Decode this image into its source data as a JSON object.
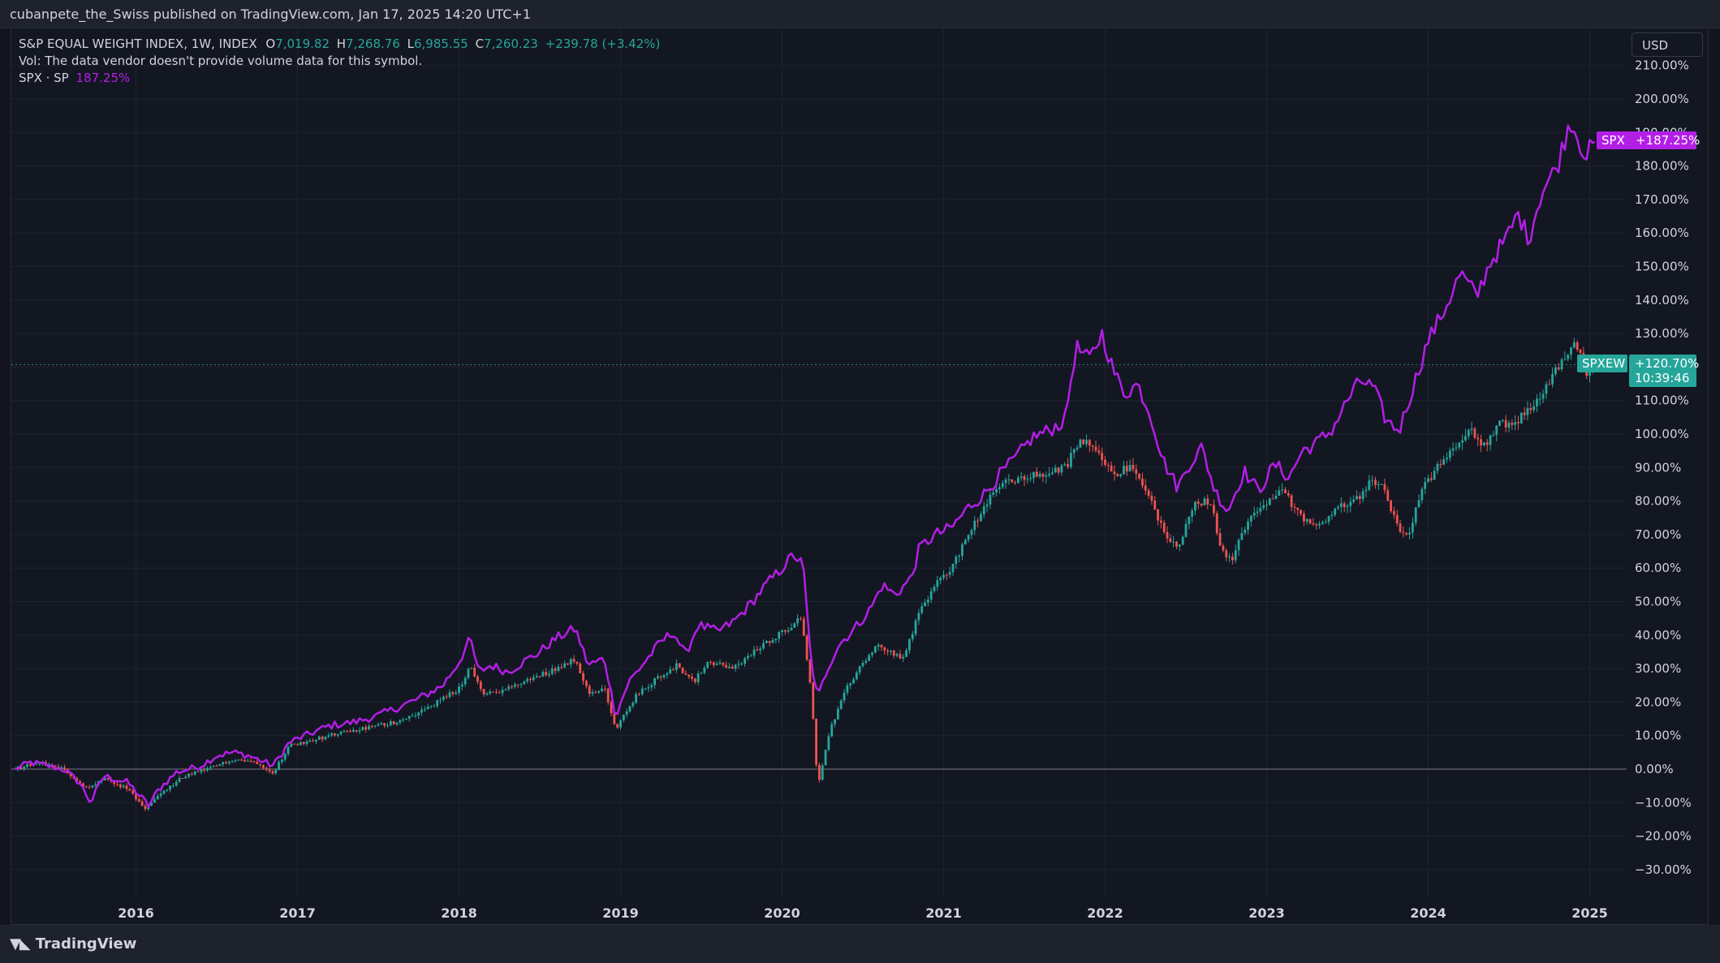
{
  "header": {
    "published": "cubanpete_the_Swiss published on TradingView.com, Jan 17, 2025 14:20 UTC+1"
  },
  "legend": {
    "symbol": "S&P EQUAL WEIGHT INDEX, 1W, INDEX",
    "open_label": "O",
    "open": "7,019.82",
    "high_label": "H",
    "high": "7,268.76",
    "low_label": "L",
    "low": "6,985.55",
    "close_label": "C",
    "close": "7,260.23",
    "change": "+239.78 (+3.42%)",
    "volume_note": "Vol: The data vendor doesn't provide volume data for this symbol.",
    "compare_label": "SPX · SP",
    "compare_value": "187.25%"
  },
  "currency": "USD",
  "footer": {
    "brand": "TradingView"
  },
  "colors": {
    "up": "#26a69a",
    "down": "#ef5350",
    "compare": "#b31ee6",
    "background": "#131722",
    "grid": "#1f2330",
    "zero_line": "#787b86"
  },
  "tags": {
    "spx_symbol": "SPX",
    "spx_value": "+187.25%",
    "spxew_symbol": "SPXEW",
    "spxew_value": "+120.70%",
    "spxew_timer": "10:39:46"
  },
  "chart_data": {
    "type": "candlestick+line",
    "y_unit": "percent",
    "ylim": [
      -36,
      212
    ],
    "xlim": [
      2015.25,
      2025.25
    ],
    "yticks": [
      "210.00%",
      "200.00%",
      "190.00%",
      "180.00%",
      "170.00%",
      "160.00%",
      "150.00%",
      "140.00%",
      "130.00%",
      "120.00%",
      "110.00%",
      "100.00%",
      "90.00%",
      "80.00%",
      "70.00%",
      "60.00%",
      "50.00%",
      "40.00%",
      "30.00%",
      "20.00%",
      "10.00%",
      "0.00%",
      "−10.00%",
      "−20.00%",
      "−30.00%"
    ],
    "xticks": [
      "2016",
      "2017",
      "2018",
      "2019",
      "2020",
      "2021",
      "2022",
      "2023",
      "2024",
      "2025"
    ],
    "grid": true,
    "last_value_line": 120.7,
    "series": [
      {
        "name": "SPX",
        "type": "line",
        "points": [
          [
            2015.25,
            0
          ],
          [
            2015.35,
            2
          ],
          [
            2015.45,
            1
          ],
          [
            2015.55,
            0
          ],
          [
            2015.65,
            -4
          ],
          [
            2015.72,
            -10
          ],
          [
            2015.8,
            -2
          ],
          [
            2015.87,
            -3
          ],
          [
            2015.95,
            -4
          ],
          [
            2016.08,
            -11
          ],
          [
            2016.14,
            -6
          ],
          [
            2016.25,
            -1
          ],
          [
            2016.4,
            1
          ],
          [
            2016.5,
            4
          ],
          [
            2016.6,
            5
          ],
          [
            2016.7,
            4
          ],
          [
            2016.85,
            1
          ],
          [
            2016.95,
            8
          ],
          [
            2017.1,
            11
          ],
          [
            2017.2,
            13
          ],
          [
            2017.35,
            14
          ],
          [
            2017.5,
            16
          ],
          [
            2017.6,
            18
          ],
          [
            2017.75,
            21
          ],
          [
            2017.9,
            25
          ],
          [
            2018.0,
            32
          ],
          [
            2018.07,
            39
          ],
          [
            2018.12,
            29
          ],
          [
            2018.2,
            31
          ],
          [
            2018.3,
            29
          ],
          [
            2018.4,
            32
          ],
          [
            2018.5,
            35
          ],
          [
            2018.6,
            39
          ],
          [
            2018.72,
            42
          ],
          [
            2018.8,
            31
          ],
          [
            2018.9,
            33
          ],
          [
            2018.97,
            16
          ],
          [
            2019.05,
            26
          ],
          [
            2019.15,
            32
          ],
          [
            2019.25,
            38
          ],
          [
            2019.33,
            41
          ],
          [
            2019.4,
            34
          ],
          [
            2019.48,
            43
          ],
          [
            2019.6,
            41
          ],
          [
            2019.7,
            44
          ],
          [
            2019.8,
            49
          ],
          [
            2019.9,
            55
          ],
          [
            2020.0,
            60
          ],
          [
            2020.07,
            64
          ],
          [
            2020.13,
            61
          ],
          [
            2020.18,
            32
          ],
          [
            2020.22,
            21
          ],
          [
            2020.28,
            30
          ],
          [
            2020.35,
            37
          ],
          [
            2020.45,
            42
          ],
          [
            2020.55,
            48
          ],
          [
            2020.62,
            55
          ],
          [
            2020.7,
            52
          ],
          [
            2020.8,
            57
          ],
          [
            2020.85,
            66
          ],
          [
            2020.95,
            70
          ],
          [
            2021.05,
            72
          ],
          [
            2021.15,
            78
          ],
          [
            2021.25,
            82
          ],
          [
            2021.35,
            88
          ],
          [
            2021.45,
            93
          ],
          [
            2021.55,
            99
          ],
          [
            2021.65,
            101
          ],
          [
            2021.75,
            104
          ],
          [
            2021.82,
            126
          ],
          [
            2021.9,
            122
          ],
          [
            2021.98,
            130
          ],
          [
            2022.05,
            119
          ],
          [
            2022.12,
            112
          ],
          [
            2022.2,
            115
          ],
          [
            2022.28,
            106
          ],
          [
            2022.36,
            92
          ],
          [
            2022.45,
            84
          ],
          [
            2022.52,
            91
          ],
          [
            2022.6,
            96
          ],
          [
            2022.68,
            83
          ],
          [
            2022.76,
            77
          ],
          [
            2022.86,
            89
          ],
          [
            2022.95,
            83
          ],
          [
            2023.05,
            91
          ],
          [
            2023.14,
            87
          ],
          [
            2023.22,
            95
          ],
          [
            2023.3,
            97
          ],
          [
            2023.4,
            101
          ],
          [
            2023.5,
            110
          ],
          [
            2023.58,
            116
          ],
          [
            2023.66,
            114
          ],
          [
            2023.74,
            104
          ],
          [
            2023.82,
            101
          ],
          [
            2023.9,
            113
          ],
          [
            2024.0,
            128
          ],
          [
            2024.1,
            137
          ],
          [
            2024.2,
            148
          ],
          [
            2024.3,
            141
          ],
          [
            2024.38,
            151
          ],
          [
            2024.48,
            158
          ],
          [
            2024.56,
            166
          ],
          [
            2024.62,
            158
          ],
          [
            2024.7,
            172
          ],
          [
            2024.8,
            180
          ],
          [
            2024.88,
            194
          ],
          [
            2024.94,
            187
          ],
          [
            2024.98,
            183
          ],
          [
            2025.03,
            187.25
          ]
        ]
      },
      {
        "name": "SPXEW",
        "type": "candlestick",
        "points": [
          [
            2015.25,
            0
          ],
          [
            2015.4,
            2
          ],
          [
            2015.55,
            0
          ],
          [
            2015.7,
            -6
          ],
          [
            2015.8,
            -3
          ],
          [
            2015.95,
            -6
          ],
          [
            2016.05,
            -12
          ],
          [
            2016.14,
            -8
          ],
          [
            2016.3,
            -2
          ],
          [
            2016.45,
            0
          ],
          [
            2016.6,
            3
          ],
          [
            2016.75,
            2
          ],
          [
            2016.85,
            -1
          ],
          [
            2016.95,
            7
          ],
          [
            2017.2,
            10
          ],
          [
            2017.4,
            12
          ],
          [
            2017.6,
            14
          ],
          [
            2017.8,
            18
          ],
          [
            2018.0,
            24
          ],
          [
            2018.07,
            31
          ],
          [
            2018.15,
            22
          ],
          [
            2018.3,
            24
          ],
          [
            2018.45,
            27
          ],
          [
            2018.6,
            30
          ],
          [
            2018.72,
            33
          ],
          [
            2018.8,
            23
          ],
          [
            2018.9,
            24
          ],
          [
            2018.97,
            12
          ],
          [
            2019.1,
            22
          ],
          [
            2019.25,
            28
          ],
          [
            2019.35,
            31
          ],
          [
            2019.45,
            26
          ],
          [
            2019.55,
            32
          ],
          [
            2019.7,
            30
          ],
          [
            2019.85,
            36
          ],
          [
            2020.0,
            41
          ],
          [
            2020.12,
            45
          ],
          [
            2020.18,
            24
          ],
          [
            2020.22,
            -5
          ],
          [
            2020.3,
            12
          ],
          [
            2020.4,
            24
          ],
          [
            2020.5,
            32
          ],
          [
            2020.6,
            37
          ],
          [
            2020.75,
            33
          ],
          [
            2020.85,
            47
          ],
          [
            2020.95,
            55
          ],
          [
            2021.05,
            60
          ],
          [
            2021.15,
            70
          ],
          [
            2021.25,
            78
          ],
          [
            2021.35,
            85
          ],
          [
            2021.5,
            87
          ],
          [
            2021.62,
            88
          ],
          [
            2021.75,
            90
          ],
          [
            2021.85,
            98
          ],
          [
            2021.95,
            96
          ],
          [
            2022.05,
            88
          ],
          [
            2022.15,
            90
          ],
          [
            2022.25,
            84
          ],
          [
            2022.35,
            72
          ],
          [
            2022.45,
            66
          ],
          [
            2022.55,
            79
          ],
          [
            2022.65,
            80
          ],
          [
            2022.72,
            66
          ],
          [
            2022.78,
            62
          ],
          [
            2022.9,
            76
          ],
          [
            2023.0,
            80
          ],
          [
            2023.1,
            83
          ],
          [
            2023.2,
            76
          ],
          [
            2023.32,
            72
          ],
          [
            2023.42,
            78
          ],
          [
            2023.55,
            80
          ],
          [
            2023.65,
            86
          ],
          [
            2023.72,
            84
          ],
          [
            2023.82,
            71
          ],
          [
            2023.88,
            70
          ],
          [
            2023.95,
            82
          ],
          [
            2024.05,
            90
          ],
          [
            2024.15,
            96
          ],
          [
            2024.25,
            101
          ],
          [
            2024.35,
            97
          ],
          [
            2024.45,
            103
          ],
          [
            2024.55,
            104
          ],
          [
            2024.65,
            108
          ],
          [
            2024.75,
            116
          ],
          [
            2024.85,
            124
          ],
          [
            2024.92,
            127
          ],
          [
            2024.97,
            118
          ],
          [
            2025.03,
            120.7
          ]
        ]
      }
    ]
  }
}
